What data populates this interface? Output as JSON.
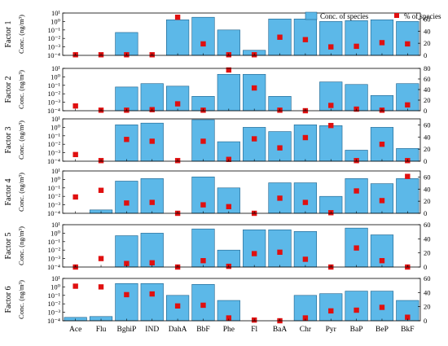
{
  "colors": {
    "bar": "#5cb8e8",
    "bar_edge": "#1a5f8a",
    "marker": "#e01010",
    "axis": "#000000"
  },
  "chart_data": {
    "type": "bar",
    "categories": [
      "Ace",
      "Flu",
      "BghiP",
      "IND",
      "DahA",
      "BbF",
      "Phe",
      "Fl",
      "BaA",
      "Chr",
      "Pyr",
      "BaP",
      "BeP",
      "BkF"
    ],
    "legend": {
      "bar_label": "Conc. of species",
      "marker_label": "% of species",
      "position": "top-right"
    },
    "left_axis_label": "Conc. (ng/m³)",
    "yscale_left": "log",
    "panels": [
      {
        "label": "Factor 1",
        "y_left_ticks": [
          "10⁻⁴",
          "10⁻³",
          "10⁻²",
          "10⁻¹",
          "10⁰",
          "10¹"
        ],
        "y_right_ticks": [
          "0",
          "20",
          "40",
          "60"
        ],
        "ylim_left_exp": [
          -4,
          1
        ],
        "ylim_right": [
          0,
          70
        ],
        "series": [
          {
            "name": "Conc. of species",
            "kind": "bar",
            "values_exp": [
              -4,
              -4,
              -1.3,
              -4,
              0.2,
              0.5,
              -1,
              -3.4,
              0.3,
              0.3,
              0,
              0.1,
              0.2,
              0
            ]
          },
          {
            "name": "% of species",
            "kind": "marker",
            "values": [
              1,
              1,
              1,
              1,
              63,
              19,
              1,
              1,
              30,
              26,
              14,
              15,
              21,
              19
            ]
          }
        ]
      },
      {
        "label": "Factor 2",
        "y_left_ticks": [
          "10⁻⁴",
          "10⁻³",
          "10⁻²",
          "10⁻¹",
          "10⁰",
          "10¹"
        ],
        "y_right_ticks": [
          "0",
          "20",
          "40",
          "60",
          "80"
        ],
        "ylim_left_exp": [
          -4,
          1
        ],
        "ylim_right": [
          0,
          80
        ],
        "series": [
          {
            "name": "Conc. of species",
            "kind": "bar",
            "values_exp": [
              -4,
              -4,
              -1.2,
              -0.8,
              -1.1,
              -2.3,
              0.3,
              0.3,
              -2.3,
              -4,
              -0.6,
              -0.9,
              -2.2,
              -0.8
            ]
          },
          {
            "name": "% of species",
            "kind": "marker",
            "values": [
              9,
              1,
              1,
              2,
              13,
              1,
              77,
              43,
              1,
              0,
              10,
              3,
              1,
              11
            ]
          }
        ]
      },
      {
        "label": "Factor 3",
        "y_left_ticks": [
          "10⁻⁴",
          "10⁻³",
          "10⁻²",
          "10⁻¹",
          "10⁰",
          "10¹"
        ],
        "y_right_ticks": [
          "0",
          "20",
          "40",
          "60"
        ],
        "ylim_left_exp": [
          -4,
          1
        ],
        "ylim_right": [
          0,
          70
        ],
        "series": [
          {
            "name": "Conc. of species",
            "kind": "bar",
            "values_exp": [
              -4,
              -4,
              0.3,
              0.5,
              -4,
              0.9,
              -1.7,
              0,
              -0.5,
              0.3,
              0.2,
              -2.7,
              0,
              -2.5
            ]
          },
          {
            "name": "% of species",
            "kind": "marker",
            "values": [
              11,
              1,
              36,
              33,
              1,
              33,
              3,
              37,
              22,
              39,
              59,
              1,
              28,
              1
            ]
          }
        ]
      },
      {
        "label": "Factor 4",
        "y_left_ticks": [
          "10⁻⁴",
          "10⁻³",
          "10⁻²",
          "10⁻¹",
          "10⁰",
          "10¹"
        ],
        "y_right_ticks": [
          "0",
          "20",
          "40",
          "60"
        ],
        "ylim_left_exp": [
          -4,
          1
        ],
        "ylim_right": [
          0,
          70
        ],
        "series": [
          {
            "name": "Conc. of species",
            "kind": "bar",
            "values_exp": [
              -4,
              -3.6,
              -0.2,
              0.1,
              -4,
              0.3,
              -1,
              -4,
              -0.4,
              -0.4,
              -2,
              0.1,
              -0.5,
              0.1
            ]
          },
          {
            "name": "% of species",
            "kind": "marker",
            "values": [
              27,
              38,
              17,
              18,
              0,
              14,
              11,
              0,
              25,
              18,
              1,
              37,
              21,
              61
            ]
          }
        ]
      },
      {
        "label": "Factor 5",
        "y_left_ticks": [
          "10⁻⁴",
          "10⁻³",
          "10⁻²",
          "10⁻¹",
          "10⁰",
          "10¹"
        ],
        "y_right_ticks": [
          "0",
          "20",
          "40",
          "60"
        ],
        "ylim_left_exp": [
          -4,
          1
        ],
        "ylim_right": [
          0,
          60
        ],
        "series": [
          {
            "name": "Conc. of species",
            "kind": "bar",
            "values_exp": [
              -4,
              -4,
              -0.3,
              0,
              -4,
              0.5,
              -2,
              0.4,
              0.4,
              0.2,
              -4,
              0.6,
              -0.2,
              -4
            ]
          },
          {
            "name": "% of species",
            "kind": "marker",
            "values": [
              0,
              12,
              5,
              6,
              0,
              9,
              1,
              19,
              21,
              11,
              0,
              27,
              9,
              0
            ]
          }
        ]
      },
      {
        "label": "Factor 6",
        "y_left_ticks": [
          "10⁻⁴",
          "10⁻³",
          "10⁻²",
          "10⁻¹",
          "10⁰",
          "10¹"
        ],
        "y_right_ticks": [
          "0",
          "20",
          "40",
          "60"
        ],
        "ylim_left_exp": [
          -4,
          1
        ],
        "ylim_right": [
          0,
          60
        ],
        "series": [
          {
            "name": "Conc. of species",
            "kind": "bar",
            "values_exp": [
              -3.6,
              -3.5,
              0.4,
              0.4,
              -1,
              0.3,
              -1.6,
              -4,
              -4,
              -1,
              -0.8,
              -0.5,
              -0.5,
              -1.6
            ]
          },
          {
            "name": "% of species",
            "kind": "marker",
            "values": [
              49,
              48,
              37,
              38,
              21,
              22,
              4,
              1,
              0,
              4,
              14,
              15,
              19,
              5
            ]
          }
        ]
      }
    ]
  }
}
